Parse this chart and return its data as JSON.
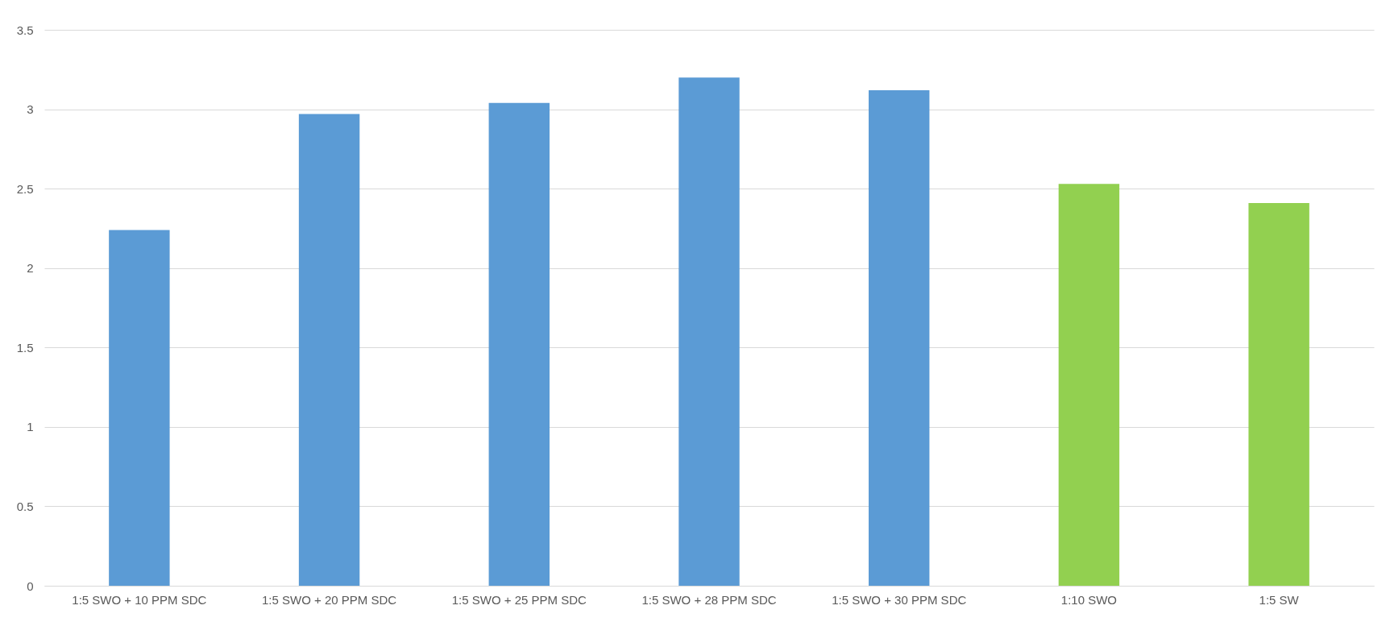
{
  "chart_data": {
    "type": "bar",
    "categories": [
      "1:5 SWO + 10 PPM SDC",
      "1:5 SWO + 20 PPM SDC",
      "1:5 SWO + 25 PPM SDC",
      "1:5 SWO + 28 PPM SDC",
      "1:5 SWO + 30 PPM SDC",
      "1:10 SWO",
      "1:5 SW"
    ],
    "values": [
      2.24,
      2.97,
      3.04,
      3.2,
      3.12,
      2.53,
      2.41
    ],
    "colors": [
      "#5b9bd5",
      "#5b9bd5",
      "#5b9bd5",
      "#5b9bd5",
      "#5b9bd5",
      "#92d050",
      "#92d050"
    ],
    "ylim": [
      0,
      3.5
    ],
    "yticks": [
      0,
      0.5,
      1,
      1.5,
      2,
      2.5,
      3,
      3.5
    ],
    "grid": "y"
  }
}
